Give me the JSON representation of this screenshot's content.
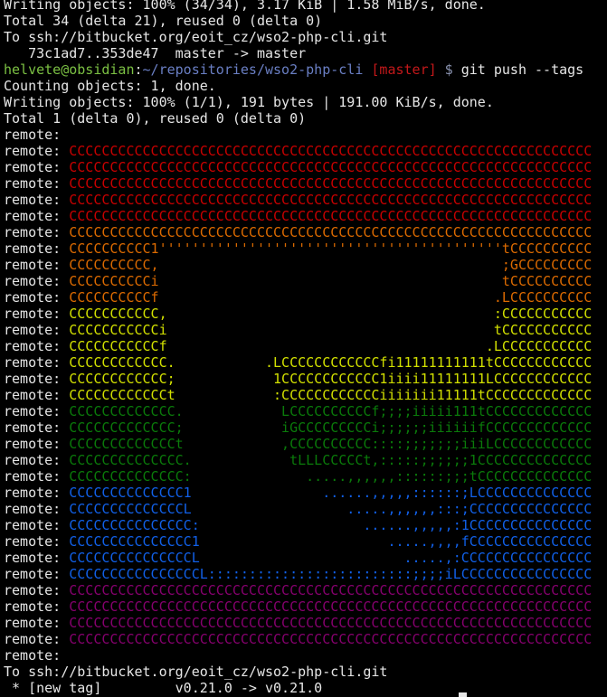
{
  "output_before": [
    "Writing objects: 100% (34/34), 3.17 KiB | 1.58 MiB/s, done.",
    "Total 34 (delta 21), reused 0 (delta 0)",
    "To ssh://bitbucket.org/eoit_cz/wso2-php-cli.git",
    "   73c1ad7..353de47  master -> master"
  ],
  "prompt": {
    "user_host": "helvete@obsidian",
    "sep": ":",
    "path": "~/repositories/wso2-php-cli",
    "branch": "[master]",
    "dollar": " $ ",
    "command": "git push --tags"
  },
  "output_after": [
    "Counting objects: 1, done.",
    "Writing objects: 100% (1/1), 191 bytes | 191.00 KiB/s, done.",
    "Total 1 (delta 0), reused 0 (delta 0)"
  ],
  "remote_prefix": "remote: ",
  "colors": {
    "red": "#c80000",
    "orange": "#dc6a00",
    "yellow": "#d2e000",
    "green": "#0a7a0a",
    "blue": "#1160e8",
    "purple": "#86006e"
  },
  "remote_art": [
    {
      "color": "",
      "text": ""
    },
    {
      "color": "red",
      "text": "CCCCCCCCCCCCCCCCCCCCCCCCCCCCCCCCCCCCCCCCCCCCCCCCCCCCCCCCCCCCCCCC"
    },
    {
      "color": "red",
      "text": "CCCCCCCCCCCCCCCCCCCCCCCCCCCCCCCCCCCCCCCCCCCCCCCCCCCCCCCCCCCCCCCC"
    },
    {
      "color": "red",
      "text": "CCCCCCCCCCCCCCCCCCCCCCCCCCCCCCCCCCCCCCCCCCCCCCCCCCCCCCCCCCCCCCCC"
    },
    {
      "color": "red",
      "text": "CCCCCCCCCCCCCCCCCCCCCCCCCCCCCCCCCCCCCCCCCCCCCCCCCCCCCCCCCCCCCCCC"
    },
    {
      "color": "red",
      "text": "CCCCCCCCCCCCCCCCCCCCCCCCCCCCCCCCCCCCCCCCCCCCCCCCCCCCCCCCCCCCCCCC"
    },
    {
      "color": "orange",
      "text": "CCCCCCCCCCCCCCCCCCCCCCCCCCCCCCCCCCCCCCCCCCCCCCCCCCCCCCCCCCCCCCCC"
    },
    {
      "color": "orange",
      "text": "CCCCCCCCCC1''''''''''''''''''''''''''''''''''''''''''tCCCCCCCCCC"
    },
    {
      "color": "orange",
      "text": "CCCCCCCCCC,                                          ;GCCCCCCCCC"
    },
    {
      "color": "orange",
      "text": "CCCCCCCCCCi                                          tCCCCCCCCCC"
    },
    {
      "color": "orange",
      "text": "CCCCCCCCCCf                                         .LCCCCCCCCCC"
    },
    {
      "color": "yellow",
      "text": "CCCCCCCCCCC,                                        :CCCCCCCCCCC"
    },
    {
      "color": "yellow",
      "text": "CCCCCCCCCCCi                                        tCCCCCCCCCCC"
    },
    {
      "color": "yellow",
      "text": "CCCCCCCCCCCf                                       .LCCCCCCCCCCC"
    },
    {
      "color": "yellow",
      "text": "CCCCCCCCCCCC.           .LCCCCCCCCCCCCfi11111111111tCCCCCCCCCCCC"
    },
    {
      "color": "yellow",
      "text": "CCCCCCCCCCCC;            1CCCCCCCCCCCC1iiii11111111LCCCCCCCCCCCC"
    },
    {
      "color": "yellow",
      "text": "CCCCCCCCCCCCt            :CCCCCCCCCCCCiiiiiii11111tCCCCCCCCCCCCC"
    },
    {
      "color": "green",
      "text": "CCCCCCCCCCCCC.            LCCCCCCCCCCf;;;;iiiii111tCCCCCCCCCCCCC"
    },
    {
      "color": "green",
      "text": "CCCCCCCCCCCCC;            iGCCCCCCCCCi;;;;;;iiiiiifCCCCCCCCCCCCC"
    },
    {
      "color": "green",
      "text": "CCCCCCCCCCCCCt            ,CCCCCCCCCC::::;;;;;;;iiiLCCCCCCCCCCCC"
    },
    {
      "color": "green",
      "text": "CCCCCCCCCCCCCC.            tLLLCCCCCt,:::::;;;;;;1CCCCCCCCCCCCCC"
    },
    {
      "color": "green",
      "text": "CCCCCCCCCCCCCC:              .....,,,,,,::::::;;;tCCCCCCCCCCCCCC"
    },
    {
      "color": "blue",
      "text": "CCCCCCCCCCCCCC1                ......,,,,,::::::;LCCCCCCCCCCCCCC"
    },
    {
      "color": "blue",
      "text": "CCCCCCCCCCCCCCL                   .....,,,,,,:::;CCCCCCCCCCCCCCC"
    },
    {
      "color": "blue",
      "text": "CCCCCCCCCCCCCCC:                    ......,,,,,:1CCCCCCCCCCCCCCC"
    },
    {
      "color": "blue",
      "text": "CCCCCCCCCCCCCCC1                       .....,,,,fCCCCCCCCCCCCCCC"
    },
    {
      "color": "blue",
      "text": "CCCCCCCCCCCCCCCL                         .....,:CCCCCCCCCCCCCCCC"
    },
    {
      "color": "blue",
      "text": "CCCCCCCCCCCCCCCCL:::::::::::::::::::::::::;;;;iLCCCCCCCCCCCCCCCC"
    },
    {
      "color": "purple",
      "text": "CCCCCCCCCCCCCCCCCCCCCCCCCCCCCCCCCCCCCCCCCCCCCCCCCCCCCCCCCCCCCCCC"
    },
    {
      "color": "purple",
      "text": "CCCCCCCCCCCCCCCCCCCCCCCCCCCCCCCCCCCCCCCCCCCCCCCCCCCCCCCCCCCCCCCC"
    },
    {
      "color": "purple",
      "text": "CCCCCCCCCCCCCCCCCCCCCCCCCCCCCCCCCCCCCCCCCCCCCCCCCCCCCCCCCCCCCCCC"
    },
    {
      "color": "purple",
      "text": "CCCCCCCCCCCCCCCCCCCCCCCCCCCCCCCCCCCCCCCCCCCCCCCCCCCCCCCCCCCCCCCC"
    },
    {
      "color": "",
      "text": ""
    }
  ],
  "output_end": [
    "To ssh://bitbucket.org/eoit_cz/wso2-php-cli.git",
    " * [new tag]         v0.21.0 -> v0.21.0"
  ]
}
